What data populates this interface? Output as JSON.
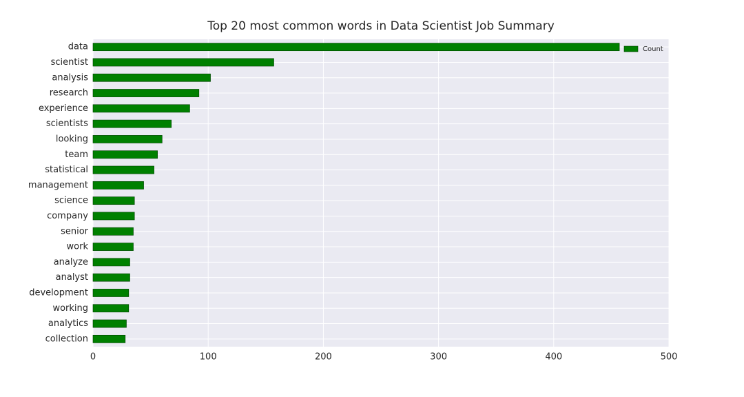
{
  "chart_data": {
    "type": "barh",
    "title": "Top 20 most common words in Data Scientist Job Summary",
    "categories": [
      "data",
      "scientist",
      "analysis",
      "research",
      "experience",
      "scientists",
      "looking",
      "team",
      "statistical",
      "management",
      "science",
      "company",
      "senior",
      "work",
      "analyze",
      "analyst",
      "development",
      "working",
      "analytics",
      "collection"
    ],
    "series": [
      {
        "name": "Count",
        "color": "#008000",
        "values": [
          457,
          157,
          102,
          92,
          84,
          68,
          60,
          56,
          53,
          44,
          36,
          36,
          35,
          35,
          32,
          32,
          31,
          31,
          29,
          28
        ]
      }
    ],
    "xlim": [
      0,
      500
    ],
    "xticks": [
      0,
      100,
      200,
      300,
      400,
      500
    ],
    "grid": true,
    "legend": "upper right"
  }
}
